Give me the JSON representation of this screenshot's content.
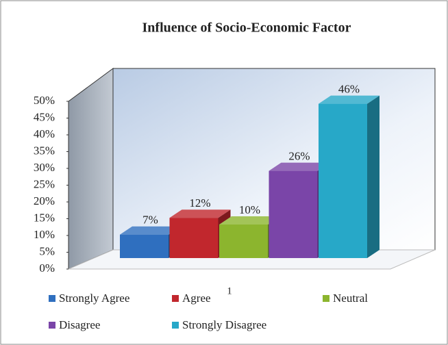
{
  "chart_data": {
    "type": "bar3d",
    "title": "Influence of Socio-Economic Factor",
    "categories": [
      "1"
    ],
    "series": [
      {
        "name": "Strongly Agree",
        "color": "#2f6fbf",
        "values": [
          7
        ],
        "value_labels": [
          "7%"
        ]
      },
      {
        "name": "Agree",
        "color": "#c1272d",
        "values": [
          12
        ],
        "value_labels": [
          "12%"
        ]
      },
      {
        "name": "Neutral",
        "color": "#8cb52e",
        "values": [
          10
        ],
        "value_labels": [
          "10%"
        ]
      },
      {
        "name": "Disagree",
        "color": "#7a45a8",
        "values": [
          26
        ],
        "value_labels": [
          "26%"
        ]
      },
      {
        "name": "Strongly Disagree",
        "color": "#27a8c8",
        "values": [
          46
        ],
        "value_labels": [
          "46%"
        ]
      }
    ],
    "ylim": [
      0,
      50
    ],
    "yticks": [
      {
        "value": 0,
        "label": "0%"
      },
      {
        "value": 5,
        "label": "5%"
      },
      {
        "value": 10,
        "label": "10%"
      },
      {
        "value": 15,
        "label": "15%"
      },
      {
        "value": 20,
        "label": "20%"
      },
      {
        "value": 25,
        "label": "25%"
      },
      {
        "value": 30,
        "label": "30%"
      },
      {
        "value": 35,
        "label": "35%"
      },
      {
        "value": 40,
        "label": "40%"
      },
      {
        "value": 45,
        "label": "45%"
      },
      {
        "value": 50,
        "label": "50%"
      }
    ],
    "legend": "bottom"
  }
}
